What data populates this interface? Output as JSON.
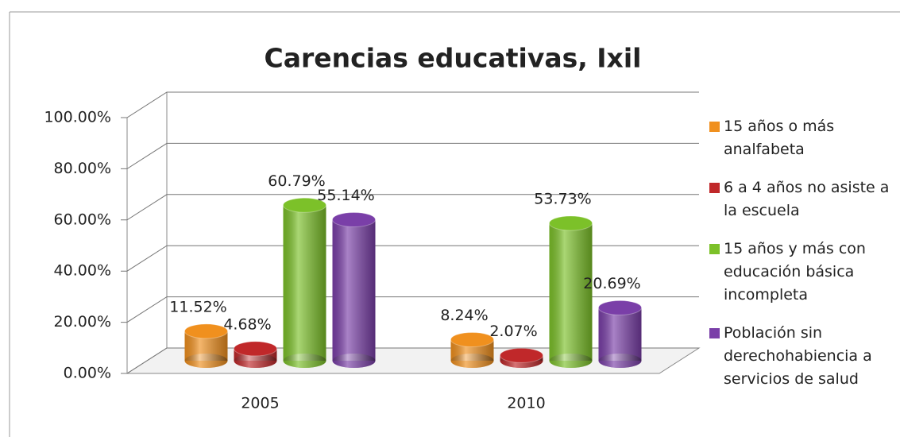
{
  "chart_data": {
    "type": "bar3d",
    "title": "Carencias educativas, Ixil",
    "categories": [
      "2005",
      "2010"
    ],
    "series": [
      {
        "name": "15 años o más analfabeta",
        "color": "#f0901e",
        "values": [
          11.52,
          8.24
        ],
        "value_labels": [
          "11.52%",
          "8.24%"
        ]
      },
      {
        "name": "6 a 4 años no asiste a la escuela",
        "color": "#c0282a",
        "values": [
          4.68,
          2.07
        ],
        "value_labels": [
          "4.68%",
          "2.07%"
        ]
      },
      {
        "name": "15 años y más con educación básica incompleta",
        "color": "#7cc129",
        "values": [
          60.79,
          53.73
        ],
        "value_labels": [
          "60.79%",
          "53.73%"
        ]
      },
      {
        "name": "Población sin derechohabiencia a servicios de salud",
        "color": "#7a3fa8",
        "values": [
          55.14,
          20.69
        ],
        "value_labels": [
          "55.14%",
          "20.69%"
        ]
      }
    ],
    "ylim": [
      0,
      100
    ],
    "yticks": [
      {
        "value": 0,
        "label": "0.00%"
      },
      {
        "value": 20,
        "label": "20.00%"
      },
      {
        "value": 40,
        "label": "40.00%"
      },
      {
        "value": 60,
        "label": "60.00%"
      },
      {
        "value": 80,
        "label": "80.00%"
      },
      {
        "value": 100,
        "label": "100.00%"
      }
    ],
    "grid": true,
    "legend": "right"
  }
}
